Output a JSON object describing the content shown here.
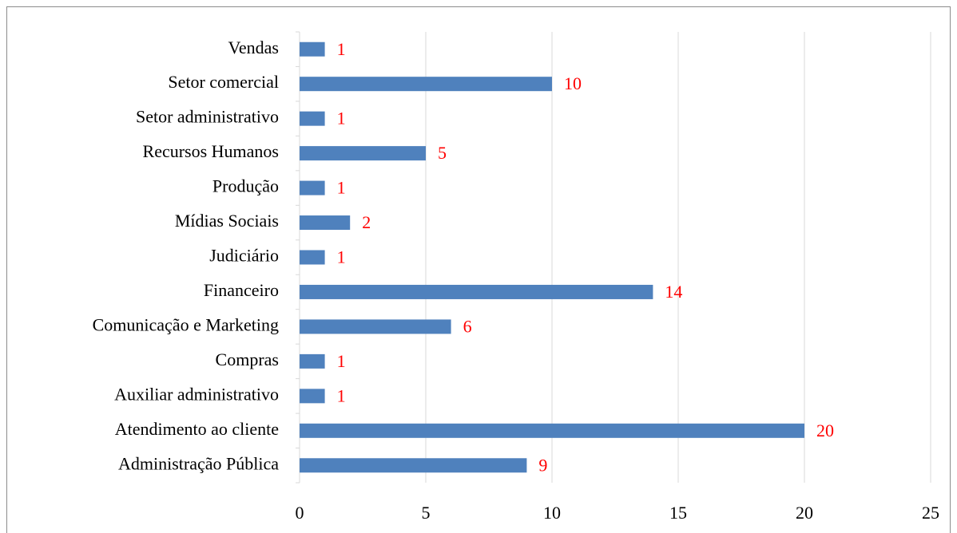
{
  "chart_data": {
    "type": "bar",
    "orientation": "horizontal",
    "categories": [
      "Vendas",
      "Setor comercial",
      "Setor administrativo",
      "Recursos Humanos",
      "Produção",
      "Mídias Sociais",
      "Judiciário",
      "Financeiro",
      "Comunicação e Marketing",
      "Compras",
      "Auxiliar administrativo",
      "Atendimento ao cliente",
      "Administração Pública"
    ],
    "values": [
      1,
      10,
      1,
      5,
      1,
      2,
      1,
      14,
      6,
      1,
      1,
      20,
      9
    ],
    "color": "#4f81bd",
    "value_label_color": "#ff0000",
    "xlim": [
      0,
      25
    ],
    "xticks": [
      0,
      5,
      10,
      15,
      20,
      25
    ],
    "grid": true
  }
}
